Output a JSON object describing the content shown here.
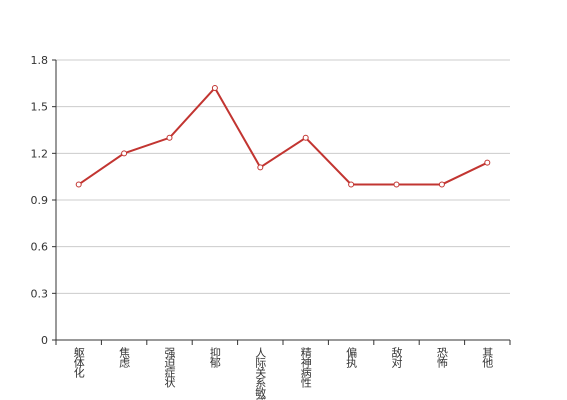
{
  "chart_data": {
    "type": "line",
    "categories": [
      "躯体化",
      "焦虑",
      "强迫症状",
      "抑郁",
      "人际关系敏感",
      "精神病性",
      "偏执",
      "敌对",
      "恐怖",
      "其他"
    ],
    "values": [
      1.0,
      1.2,
      1.3,
      1.62,
      1.11,
      1.3,
      1.0,
      1.0,
      1.0,
      1.14
    ],
    "color": "#c23531",
    "ylim": [
      0,
      1.8
    ],
    "yticks": [
      0,
      0.3,
      0.6,
      0.9,
      1.2,
      1.5,
      1.8
    ],
    "grid": true
  }
}
